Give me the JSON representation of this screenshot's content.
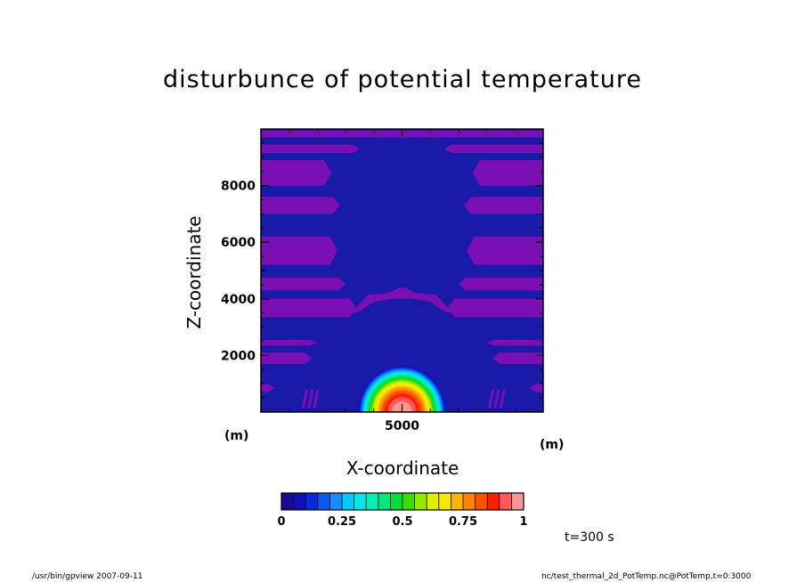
{
  "chart_data": {
    "type": "heatmap",
    "title": "disturbunce of potential temperature",
    "xlabel": "X-coordinate",
    "ylabel": "Z-coordinate",
    "x_unit": "(m)",
    "y_unit": "(m)",
    "xlim": [
      0,
      10000
    ],
    "ylim": [
      0,
      10000
    ],
    "x_ticks": [
      5000
    ],
    "y_ticks": [
      2000,
      4000,
      6000,
      8000
    ],
    "colorbar": {
      "min": 0,
      "max": 1,
      "ticks": [
        0,
        0.25,
        0.5,
        0.75,
        1
      ],
      "tick_labels": [
        "0",
        "0.25",
        "0.5",
        "0.75",
        "1"
      ],
      "colors": [
        "#1a0a90",
        "#1010b8",
        "#0a2ad8",
        "#0a5af0",
        "#1a8cff",
        "#00c8ff",
        "#00e6e6",
        "#00f0b4",
        "#00e678",
        "#00dc3c",
        "#3cdc00",
        "#96e600",
        "#dcf000",
        "#ffe600",
        "#ffb400",
        "#ff8200",
        "#ff5000",
        "#ff1e00",
        "#ff5a5a",
        "#ff9696"
      ]
    },
    "bubble": {
      "center_x": 5000,
      "center_z": 0,
      "peak_value": 1.0,
      "radius_m": 1600
    },
    "background_value": 0.03,
    "secondary_value": 0.0
  },
  "time_label": "t=300 s",
  "footer": {
    "left": "/usr/bin/gpview   2007-09-11",
    "right": "nc/test_thermal_2d_PotTemp.nc@PotTemp,t=0:3000"
  },
  "colors": {
    "background_band": "#1a1aa8",
    "alternate_band": "#7a0fb4"
  }
}
